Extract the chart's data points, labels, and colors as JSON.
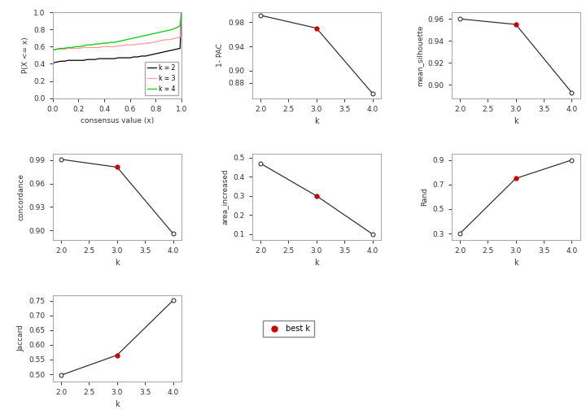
{
  "ecdf": {
    "k2": {
      "x": [
        0.0,
        0.0,
        0.03,
        0.06,
        0.09,
        0.12,
        0.15,
        0.18,
        0.21,
        0.24,
        0.27,
        0.3,
        0.33,
        0.36,
        0.39,
        0.42,
        0.45,
        0.48,
        0.51,
        0.54,
        0.57,
        0.6,
        0.63,
        0.66,
        0.69,
        0.72,
        0.75,
        0.78,
        0.81,
        0.84,
        0.87,
        0.9,
        0.93,
        0.96,
        0.99,
        1.0
      ],
      "y": [
        0.0,
        0.41,
        0.42,
        0.43,
        0.43,
        0.44,
        0.44,
        0.44,
        0.44,
        0.44,
        0.45,
        0.45,
        0.45,
        0.46,
        0.46,
        0.46,
        0.46,
        0.46,
        0.47,
        0.47,
        0.47,
        0.47,
        0.48,
        0.48,
        0.49,
        0.49,
        0.5,
        0.51,
        0.52,
        0.53,
        0.54,
        0.55,
        0.56,
        0.57,
        0.58,
        1.0
      ],
      "color": "#000000"
    },
    "k3": {
      "x": [
        0.0,
        0.0,
        0.03,
        0.06,
        0.09,
        0.12,
        0.15,
        0.18,
        0.21,
        0.24,
        0.27,
        0.3,
        0.33,
        0.36,
        0.39,
        0.42,
        0.45,
        0.48,
        0.51,
        0.54,
        0.57,
        0.6,
        0.63,
        0.66,
        0.69,
        0.72,
        0.75,
        0.78,
        0.81,
        0.84,
        0.87,
        0.9,
        0.93,
        0.96,
        0.99,
        1.0
      ],
      "y": [
        0.0,
        0.56,
        0.57,
        0.57,
        0.57,
        0.58,
        0.58,
        0.58,
        0.58,
        0.59,
        0.59,
        0.59,
        0.59,
        0.59,
        0.6,
        0.6,
        0.6,
        0.6,
        0.61,
        0.61,
        0.62,
        0.62,
        0.62,
        0.63,
        0.63,
        0.64,
        0.64,
        0.65,
        0.66,
        0.67,
        0.68,
        0.68,
        0.69,
        0.7,
        0.71,
        1.0
      ],
      "color": "#FF9999"
    },
    "k4": {
      "x": [
        0.0,
        0.0,
        0.03,
        0.06,
        0.09,
        0.12,
        0.15,
        0.18,
        0.21,
        0.24,
        0.27,
        0.3,
        0.33,
        0.36,
        0.39,
        0.42,
        0.45,
        0.48,
        0.51,
        0.54,
        0.57,
        0.6,
        0.63,
        0.66,
        0.69,
        0.72,
        0.75,
        0.78,
        0.81,
        0.84,
        0.87,
        0.9,
        0.93,
        0.96,
        0.99,
        1.0
      ],
      "y": [
        0.0,
        0.56,
        0.57,
        0.58,
        0.58,
        0.59,
        0.59,
        0.6,
        0.6,
        0.61,
        0.62,
        0.62,
        0.63,
        0.63,
        0.64,
        0.64,
        0.65,
        0.65,
        0.66,
        0.67,
        0.68,
        0.69,
        0.7,
        0.71,
        0.72,
        0.73,
        0.74,
        0.75,
        0.76,
        0.77,
        0.78,
        0.79,
        0.8,
        0.82,
        0.84,
        1.0
      ],
      "color": "#00CC00"
    }
  },
  "one_minus_pac": {
    "k": [
      2,
      3,
      4
    ],
    "values": [
      0.991,
      0.97,
      0.863
    ],
    "best_k": 3,
    "ylabel": "1- PAC",
    "yticks": [
      0.88,
      0.9,
      0.94,
      0.98
    ],
    "ylim": [
      0.855,
      0.996
    ]
  },
  "mean_silhouette": {
    "k": [
      2,
      3,
      4
    ],
    "values": [
      0.96,
      0.955,
      0.893
    ],
    "best_k": 3,
    "ylabel": "mean_silhouette",
    "yticks": [
      0.9,
      0.92,
      0.94,
      0.96
    ],
    "ylim": [
      0.888,
      0.966
    ]
  },
  "concordance": {
    "k": [
      2,
      3,
      4
    ],
    "values": [
      0.991,
      0.981,
      0.896
    ],
    "best_k": 3,
    "ylabel": "concordance",
    "yticks": [
      0.9,
      0.93,
      0.96,
      0.99
    ],
    "ylim": [
      0.888,
      0.998
    ]
  },
  "area_increased": {
    "k": [
      2,
      3,
      4
    ],
    "values": [
      0.47,
      0.3,
      0.1
    ],
    "best_k": 3,
    "ylabel": "area_increased",
    "yticks": [
      0.1,
      0.2,
      0.3,
      0.4,
      0.5
    ],
    "ylim": [
      0.07,
      0.52
    ]
  },
  "rand": {
    "k": [
      2,
      3,
      4
    ],
    "values": [
      0.3,
      0.75,
      0.9
    ],
    "best_k": 3,
    "ylabel": "Rand",
    "yticks": [
      0.3,
      0.5,
      0.7,
      0.9
    ],
    "ylim": [
      0.25,
      0.95
    ]
  },
  "jaccard": {
    "k": [
      2,
      3,
      4
    ],
    "values": [
      0.497,
      0.565,
      0.751
    ],
    "best_k": 3,
    "ylabel": "Jaccard",
    "yticks": [
      0.5,
      0.55,
      0.6,
      0.65,
      0.7,
      0.75
    ],
    "ylim": [
      0.476,
      0.768
    ]
  },
  "bg_color": "#FFFFFF",
  "line_color": "#333333",
  "best_k_color": "#CC0000",
  "open_circle_color": "#333333",
  "axis_color": "#AAAAAA",
  "text_color": "#333333"
}
